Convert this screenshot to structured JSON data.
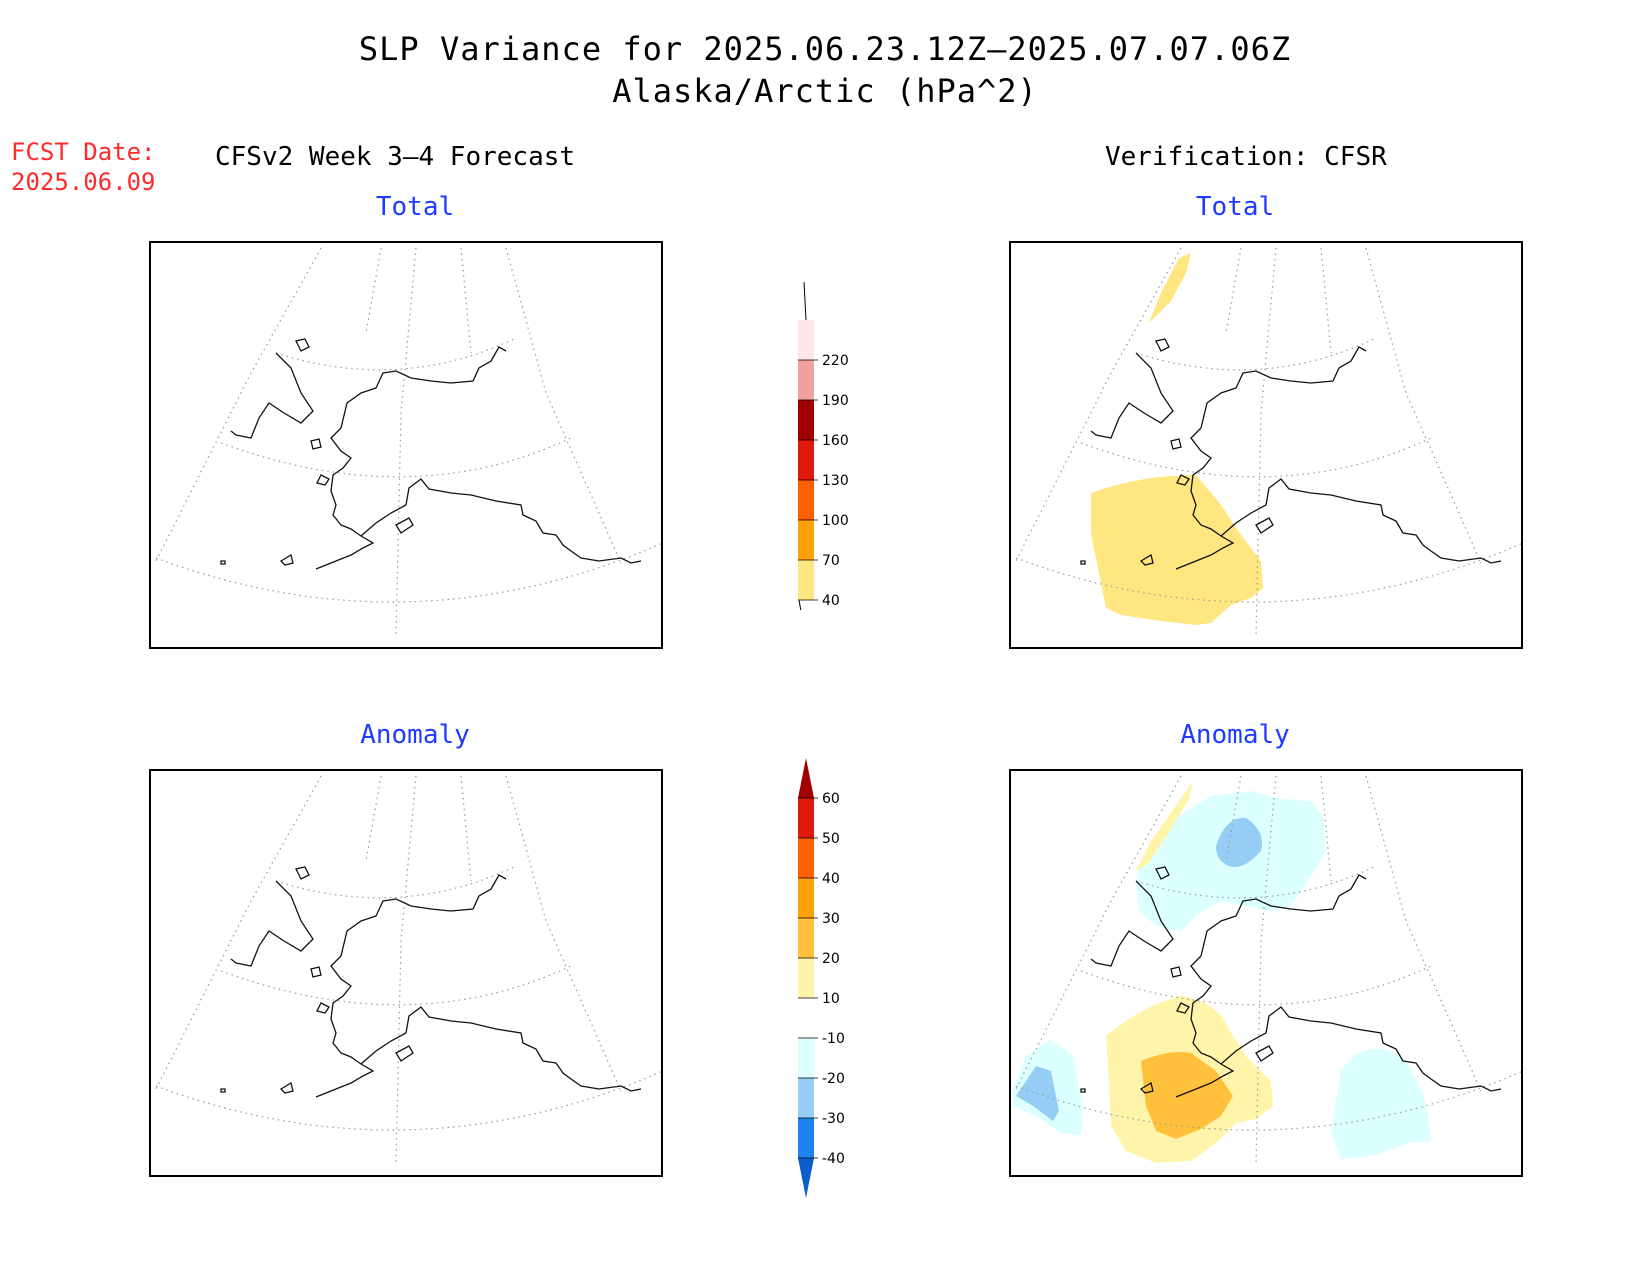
{
  "title": {
    "line1": "SLP Variance for 2025.06.23.12Z–2025.07.07.06Z",
    "line2": "Alaska/Arctic (hPa^2)"
  },
  "forecast_date": {
    "label": "FCST Date:",
    "value": "2025.06.09"
  },
  "columns": {
    "left": "CFSv2 Week 3–4 Forecast",
    "right": "Verification: CFSR"
  },
  "panels": {
    "top_left": "Total",
    "top_right": "Total",
    "bottom_left": "Anomaly",
    "bottom_right": "Anomaly"
  },
  "colorbars": {
    "total": {
      "levels": [
        "40",
        "70",
        "100",
        "130",
        "160",
        "190",
        "220"
      ],
      "colors": [
        "#ffe680",
        "#ffa10a",
        "#ff6000",
        "#e01a0a",
        "#a00000",
        "#f0a0a0",
        "#ffe6e6"
      ]
    },
    "anomaly": {
      "levels": [
        "-40",
        "-30",
        "-20",
        "-10",
        "10",
        "20",
        "30",
        "40",
        "50",
        "60"
      ],
      "colors": [
        "#0a5ecc",
        "#1e82f0",
        "#96cdf5",
        "#dcffff",
        "#ffffff",
        "#fff5aa",
        "#ffc03c",
        "#ffa10a",
        "#ff6000",
        "#e01a0a",
        "#a00000"
      ]
    }
  },
  "shading": {
    "verification_total": {
      "color": "#ffe680"
    },
    "verification_anomaly": {
      "positive_light": "#fff5aa",
      "positive_mid": "#ffc03c",
      "negative_light": "#dcffff",
      "negative_mid": "#96cdf5"
    }
  }
}
